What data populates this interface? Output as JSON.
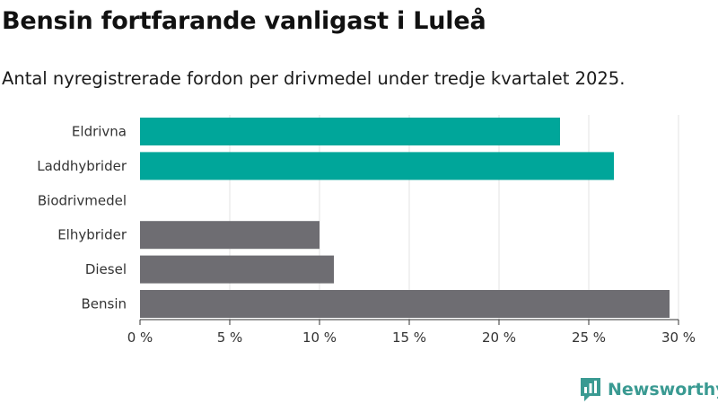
{
  "header": {
    "title": "Bensin fortfarande vanligast i Luleå",
    "subtitle": "Antal nyregistrerade fordon per drivmedel under tredje kvartalet 2025."
  },
  "brand": {
    "name": "Newsworthy",
    "icon": "newsworthy-logo-icon",
    "color": "#3a9a92"
  },
  "chart_data": {
    "type": "bar",
    "orientation": "horizontal",
    "categories": [
      "Eldrivna",
      "Laddhybrider",
      "Biodrivmedel",
      "Elhybrider",
      "Diesel",
      "Bensin"
    ],
    "values": [
      23.4,
      26.4,
      0,
      10.0,
      10.8,
      29.5
    ],
    "colors": [
      "#00a69a",
      "#00a69a",
      "#00a69a",
      "#6e6d72",
      "#6e6d72",
      "#6e6d72"
    ],
    "xlim": [
      0,
      30
    ],
    "ticks": [
      0,
      5,
      10,
      15,
      20,
      25,
      30
    ],
    "tick_labels": [
      "0 %",
      "5 %",
      "10 %",
      "15 %",
      "20 %",
      "25 %",
      "30 %"
    ],
    "grid": true,
    "title": "",
    "xlabel": "",
    "ylabel": ""
  }
}
